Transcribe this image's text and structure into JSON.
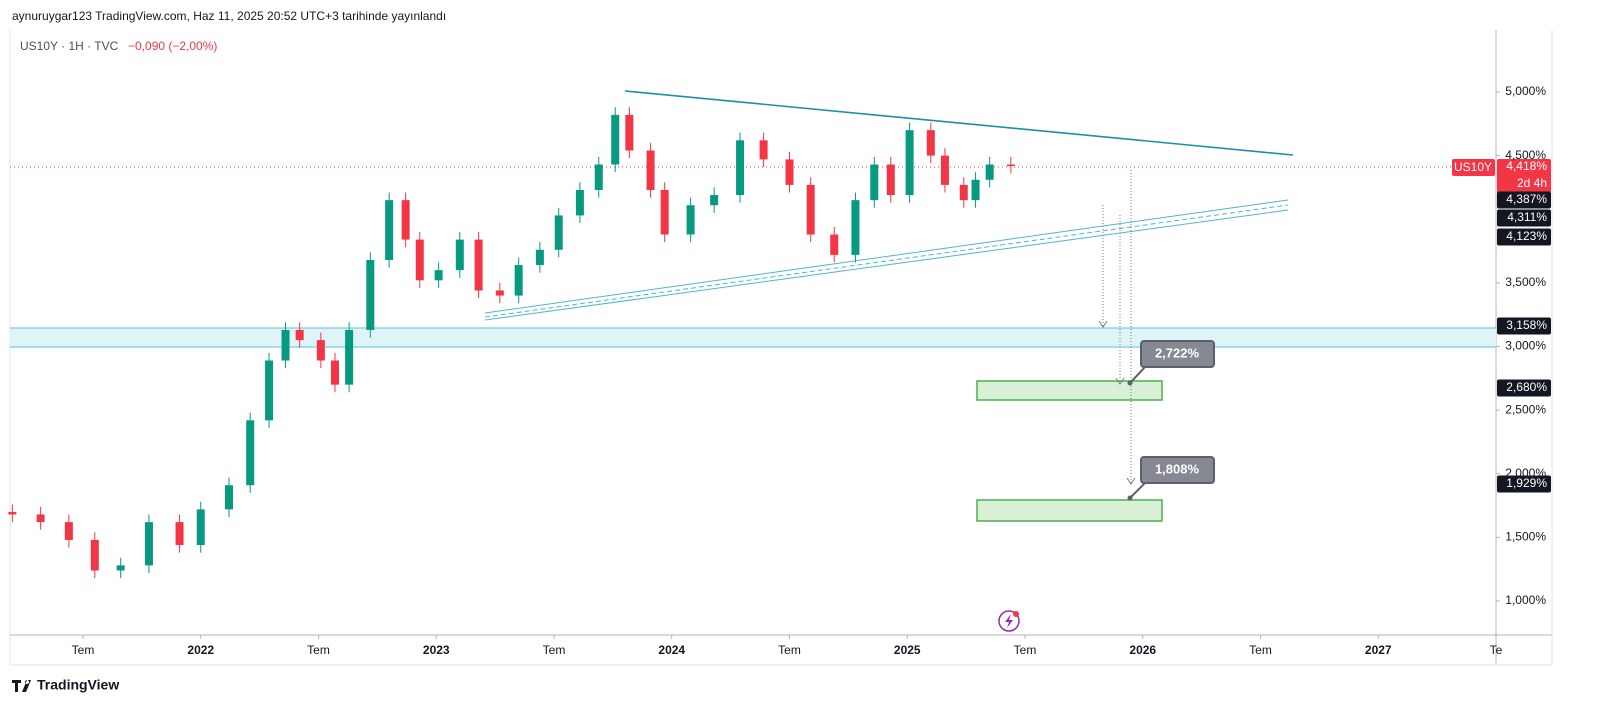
{
  "header": {
    "publisher": "aynuruygar123 TradingView.com, Haz 11, 2025 20:52 UTC+3 tarihinde yayınlandı",
    "symbol": "US10Y · 1H · TVC",
    "change": "−0,090 (−2,00%)",
    "brand": "TradingView"
  },
  "chart_data": {
    "type": "candlestick",
    "x": [
      2021.2,
      2021.32,
      2021.44,
      2021.55,
      2021.66,
      2021.78,
      2021.91,
      2022.0,
      2022.12,
      2022.21,
      2022.29,
      2022.36,
      2022.42,
      2022.51,
      2022.57,
      2022.63,
      2022.72,
      2022.8,
      2022.87,
      2022.93,
      2023.01,
      2023.1,
      2023.18,
      2023.27,
      2023.35,
      2023.44,
      2023.52,
      2023.61,
      2023.69,
      2023.76,
      2023.82,
      2023.91,
      2023.97,
      2024.08,
      2024.18,
      2024.29,
      2024.39,
      2024.5,
      2024.59,
      2024.69,
      2024.78,
      2024.86,
      2024.93,
      2025.01,
      2025.1,
      2025.16,
      2025.24,
      2025.29,
      2025.35,
      2025.44
    ],
    "open": [
      1.7,
      1.68,
      1.62,
      1.48,
      1.24,
      1.28,
      1.62,
      1.44,
      1.72,
      1.91,
      2.42,
      2.89,
      3.13,
      3.05,
      2.89,
      2.7,
      3.13,
      3.68,
      4.15,
      3.84,
      3.52,
      3.6,
      3.84,
      3.44,
      3.4,
      3.64,
      3.76,
      4.03,
      4.23,
      4.43,
      4.82,
      4.54,
      4.23,
      3.88,
      4.11,
      4.19,
      4.62,
      4.47,
      4.27,
      3.88,
      3.72,
      4.15,
      4.43,
      4.19,
      4.7,
      4.5,
      4.27,
      4.15,
      4.31,
      4.43
    ],
    "high": [
      1.76,
      1.74,
      1.68,
      1.54,
      1.34,
      1.68,
      1.68,
      1.78,
      1.97,
      2.48,
      2.95,
      3.19,
      3.19,
      3.11,
      2.95,
      3.19,
      3.74,
      4.21,
      4.21,
      3.9,
      3.66,
      3.9,
      3.9,
      3.5,
      3.7,
      3.82,
      4.09,
      4.29,
      4.49,
      4.88,
      4.88,
      4.6,
      4.29,
      4.17,
      4.25,
      4.68,
      4.68,
      4.53,
      4.33,
      3.94,
      4.21,
      4.49,
      4.49,
      4.76,
      4.76,
      4.56,
      4.33,
      4.37,
      4.49,
      4.49
    ],
    "low": [
      1.62,
      1.56,
      1.42,
      1.18,
      1.18,
      1.22,
      1.38,
      1.38,
      1.66,
      1.85,
      2.36,
      2.83,
      2.99,
      2.83,
      2.64,
      2.64,
      3.07,
      3.62,
      3.78,
      3.46,
      3.46,
      3.54,
      3.38,
      3.34,
      3.34,
      3.58,
      3.7,
      3.97,
      4.17,
      4.37,
      4.48,
      4.17,
      3.82,
      3.82,
      4.05,
      4.13,
      4.41,
      4.21,
      3.82,
      3.66,
      3.66,
      4.09,
      4.13,
      4.13,
      4.44,
      4.21,
      4.09,
      4.09,
      4.25,
      4.36
    ],
    "close": [
      1.68,
      1.62,
      1.48,
      1.24,
      1.28,
      1.62,
      1.44,
      1.72,
      1.91,
      2.42,
      2.89,
      3.13,
      3.05,
      2.89,
      2.7,
      3.13,
      3.68,
      4.15,
      3.84,
      3.52,
      3.6,
      3.84,
      3.44,
      3.4,
      3.64,
      3.76,
      4.03,
      4.23,
      4.43,
      4.82,
      4.54,
      4.23,
      3.88,
      4.11,
      4.19,
      4.62,
      4.47,
      4.27,
      3.88,
      3.72,
      4.15,
      4.43,
      4.19,
      4.7,
      4.5,
      4.27,
      4.15,
      4.31,
      4.43,
      4.418
    ],
    "up_color": "#089981",
    "down_color": "#f23645",
    "xlim": [
      2021.19,
      2027.5
    ],
    "xticks": [
      {
        "value": 2021.5,
        "label": "Tem"
      },
      2022,
      {
        "value": 2022.5,
        "label": "Tem"
      },
      2023,
      {
        "value": 2023.5,
        "label": "Tem"
      },
      2024,
      {
        "value": 2024.5,
        "label": "Tem"
      },
      2025,
      {
        "value": 2025.5,
        "label": "Tem"
      },
      2026,
      {
        "value": 2026.5,
        "label": "Tem"
      },
      2027,
      {
        "value": 2027.5,
        "label": "Te"
      }
    ],
    "ylim": [
      0.733,
      5.487
    ],
    "yticks": [
      {
        "value": 1,
        "label": "1,000%"
      },
      {
        "value": 1.5,
        "label": "1,500%"
      },
      {
        "value": 2,
        "label": "2,000%"
      },
      {
        "value": 2.5,
        "label": "2,500%"
      },
      {
        "value": 3,
        "label": "3,000%"
      },
      {
        "value": 3.5,
        "label": "3,500%"
      },
      {
        "value": 4.5,
        "label": "4,500%"
      },
      {
        "value": 5,
        "label": "5,000%"
      }
    ],
    "symbol_badge": "US10Y",
    "last_price": "4,418%",
    "countdown": "2d 4h",
    "price_labels": [
      "4,387%",
      "4,311%",
      "4,123%",
      "3,158%",
      "2,680%",
      "1,929%"
    ],
    "callouts": [
      "2,722%",
      "1,808%"
    ]
  }
}
